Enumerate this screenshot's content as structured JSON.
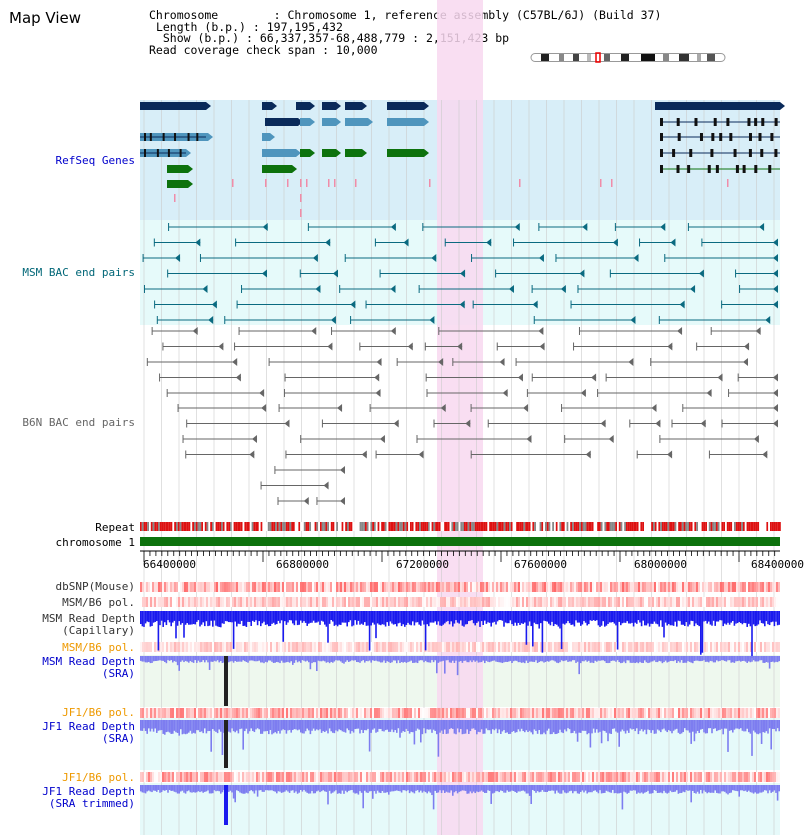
{
  "header": {
    "title": "Map View",
    "chromosome_label": "Chromosome",
    "chromosome_value": "Chromosome 1, reference assembly (C57BL/6J) (Build 37)",
    "length_label": "Length (b.p.)",
    "length_value": "197,195,432",
    "show_label": "Show (b.p.)",
    "show_value": "66,337,357-68,488,779 : 2,151,423 bp",
    "coverage_label": "Read coverage check span",
    "coverage_value": "10,000"
  },
  "tracks": {
    "refseq": "RefSeq Genes",
    "msm_bac": "MSM BAC end pairs",
    "b6n_bac": "B6N BAC end pairs",
    "repeat": "Repeat",
    "chromosome": "chromosome 1",
    "dbsnp": "dbSNP(Mouse)",
    "msm_b6_pol_1": "MSM/B6 pol.",
    "msm_depth_cap": "MSM Read Depth\n(Capillary)",
    "msm_b6_pol_2": "MSM/B6 pol.",
    "msm_depth_sra": "MSM Read Depth\n(SRA)",
    "jf1_b6_pol_1": "JF1/B6 pol.",
    "jf1_depth_sra": "JF1 Read Depth\n(SRA)",
    "jf1_b6_pol_2": "JF1/B6 pol.",
    "jf1_depth_trim": "JF1 Read Depth\n(SRA trimmed)"
  },
  "axis": {
    "ticks": [
      "66400000",
      "66800000",
      "67200000",
      "67600000",
      "68000000",
      "68400000"
    ]
  },
  "colors": {
    "refseq_bg": "#d8eef8",
    "bac_bg": "#e6fafa",
    "highlight": "#f8d8f0",
    "gene_navy": "#0a2a5a",
    "gene_blue": "#4f95bd",
    "gene_green": "#0d720d",
    "msm_line": "#0a6a80",
    "b6n_line": "#666666",
    "chromosome_bar": "#0d720d",
    "depth_blue": "#1a1aee",
    "depth_light": "#7d7df0",
    "label_blue": "#0000cc",
    "label_teal": "#006677",
    "label_orange": "#ee9900"
  }
}
